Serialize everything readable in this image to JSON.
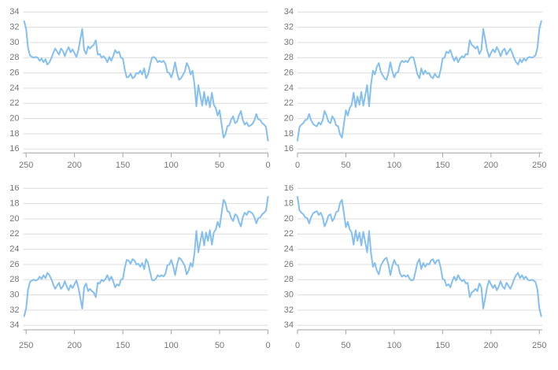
{
  "app": {
    "background_color": "#ffffff"
  },
  "chart_data": {
    "type": "line",
    "title": "",
    "xlabel": "",
    "ylabel": "",
    "legend": null,
    "grid": "horizontal-only",
    "x_range": [
      0,
      253
    ],
    "y_range": [
      16,
      34
    ],
    "x_ticks": [
      0,
      50,
      100,
      150,
      200,
      250
    ],
    "y_ticks": [
      16,
      18,
      20,
      22,
      24,
      26,
      28,
      30,
      32,
      34
    ],
    "x_step": 2,
    "line_color": "#85BFF0",
    "grid_color": "#DCDCDC",
    "axis_color": "#A3A3A3",
    "label_color": "#757575",
    "values": [
      17.1,
      18.9,
      19.2,
      19.4,
      19.8,
      19.9,
      20.6,
      19.8,
      19.3,
      19.1,
      19.0,
      19.5,
      19.2,
      19.8,
      21.0,
      20.4,
      19.6,
      19.4,
      20.3,
      19.9,
      19.1,
      19.0,
      17.9,
      17.5,
      19.3,
      21.1,
      20.4,
      21.4,
      21.8,
      23.4,
      21.5,
      22.9,
      21.8,
      23.5,
      21.7,
      23.0,
      24.4,
      21.6,
      24.5,
      26.3,
      25.8,
      26.8,
      27.3,
      26.2,
      25.7,
      25.3,
      25.1,
      26.0,
      27.4,
      26.2,
      25.4,
      26.0,
      26.1,
      27.2,
      27.6,
      27.4,
      27.6,
      27.4,
      27.9,
      28.1,
      28.0,
      26.9,
      25.8,
      25.3,
      26.6,
      25.8,
      26.3,
      25.9,
      26.0,
      25.5,
      25.3,
      25.9,
      25.5,
      25.4,
      26.4,
      27.9,
      28.0,
      28.8,
      28.6,
      29.0,
      28.2,
      27.6,
      28.1,
      27.4,
      27.9,
      28.2,
      28.0,
      28.5,
      28.4,
      30.3,
      29.7,
      29.5,
      29.2,
      29.5,
      28.5,
      29.0,
      31.8,
      30.4,
      29.0,
      28.1,
      28.6,
      29.1,
      28.7,
      29.4,
      28.9,
      28.2,
      28.9,
      29.2,
      28.4,
      28.8,
      29.2,
      28.6,
      27.9,
      27.4,
      27.1,
      27.8,
      27.4,
      27.9,
      27.6,
      28.0,
      28.1,
      28.0,
      28.1,
      28.3,
      29.3,
      31.8,
      32.8
    ],
    "panels": [
      {
        "id": "top-left",
        "x_inverted": true,
        "y_inverted": false,
        "x_tick_labels_left_to_right": [
          "250",
          "200",
          "150",
          "100",
          "50",
          "0"
        ],
        "y_tick_labels_top_to_bottom": [
          "34",
          "32",
          "30",
          "28",
          "26",
          "24",
          "22",
          "20",
          "18",
          "16"
        ]
      },
      {
        "id": "top-right",
        "x_inverted": false,
        "y_inverted": false,
        "x_tick_labels_left_to_right": [
          "0",
          "50",
          "100",
          "150",
          "200",
          "250"
        ],
        "y_tick_labels_top_to_bottom": [
          "34",
          "32",
          "30",
          "28",
          "26",
          "24",
          "22",
          "20",
          "18",
          "16"
        ]
      },
      {
        "id": "bottom-left",
        "x_inverted": true,
        "y_inverted": true,
        "x_tick_labels_left_to_right": [
          "250",
          "200",
          "150",
          "100",
          "50",
          "0"
        ],
        "y_tick_labels_top_to_bottom": [
          "16",
          "18",
          "20",
          "22",
          "24",
          "26",
          "28",
          "30",
          "32",
          "34"
        ]
      },
      {
        "id": "bottom-right",
        "x_inverted": false,
        "y_inverted": true,
        "x_tick_labels_left_to_right": [
          "0",
          "50",
          "100",
          "150",
          "200",
          "250"
        ],
        "y_tick_labels_top_to_bottom": [
          "16",
          "18",
          "20",
          "22",
          "24",
          "26",
          "28",
          "30",
          "32",
          "34"
        ]
      }
    ]
  }
}
